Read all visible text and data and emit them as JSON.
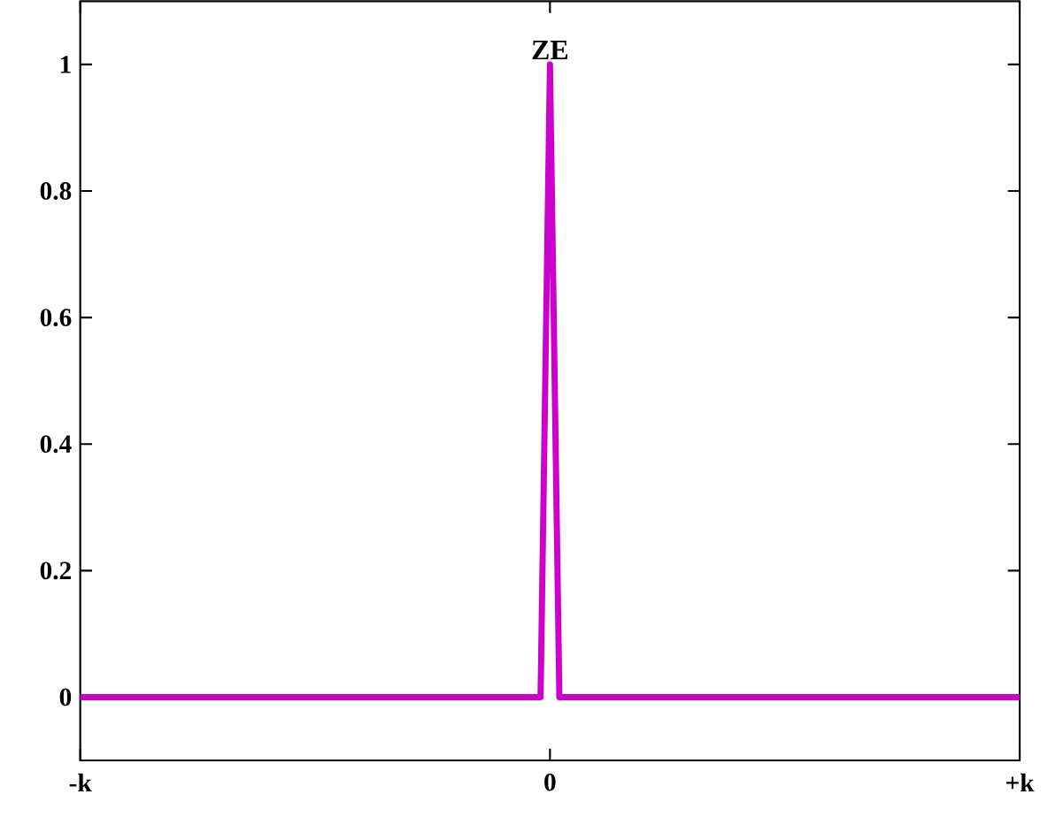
{
  "chart_data": {
    "type": "line",
    "categories": [
      "-k",
      null,
      null,
      null,
      null,
      null,
      null,
      null,
      null,
      null,
      null,
      null,
      null,
      null,
      null,
      null,
      null,
      null,
      null,
      null,
      null,
      null,
      null,
      null,
      null,
      null,
      null,
      null,
      null,
      null,
      null,
      null,
      null,
      null,
      null,
      null,
      null,
      null,
      null,
      null,
      null,
      null,
      null,
      null,
      null,
      null,
      null,
      null,
      null,
      null,
      "0",
      null,
      null,
      null,
      null,
      null,
      null,
      null,
      null,
      null,
      null,
      null,
      null,
      null,
      null,
      null,
      null,
      null,
      null,
      null,
      null,
      null,
      null,
      null,
      null,
      null,
      null,
      null,
      null,
      null,
      null,
      null,
      null,
      null,
      null,
      null,
      null,
      null,
      null,
      null,
      null,
      null,
      null,
      null,
      null,
      null,
      null,
      null,
      null,
      null,
      "+k"
    ],
    "series": [
      {
        "color": "#cc00cc",
        "values": [
          0,
          0,
          0,
          0,
          0,
          0,
          0,
          0,
          0,
          0,
          0,
          0,
          0,
          0,
          0,
          0,
          0,
          0,
          0,
          0,
          0,
          0,
          0,
          0,
          0,
          0,
          0,
          0,
          0,
          0,
          0,
          0,
          0,
          0,
          0,
          0,
          0,
          0,
          0,
          0,
          0,
          0,
          0,
          0,
          0,
          0,
          0,
          0,
          0,
          0,
          1,
          0,
          0,
          0,
          0,
          0,
          0,
          0,
          0,
          0,
          0,
          0,
          0,
          0,
          0,
          0,
          0,
          0,
          0,
          0,
          0,
          0,
          0,
          0,
          0,
          0,
          0,
          0,
          0,
          0,
          0,
          0,
          0,
          0,
          0,
          0,
          0,
          0,
          0,
          0,
          0,
          0,
          0,
          0,
          0,
          0,
          0,
          0,
          0,
          0,
          0
        ]
      }
    ],
    "ylim": [
      -0.1,
      1.1
    ],
    "yticks": [
      0,
      0.2,
      0.4,
      0.6,
      0.8,
      1
    ],
    "annotations": [
      {
        "text": "ZE",
        "x": "0",
        "y": 1
      }
    ],
    "marker": "none",
    "line_style": "solid"
  }
}
